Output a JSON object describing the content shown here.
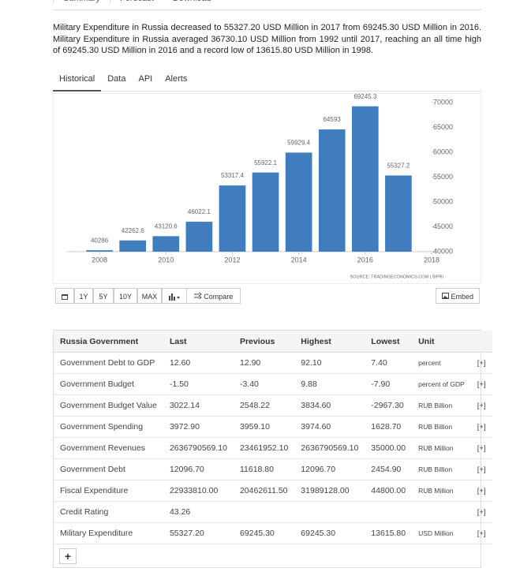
{
  "top_tabs": [
    "Summary",
    "Forecast",
    "Download"
  ],
  "description": "Military Expenditure in Russia decreased to 55327.20 USD Million in 2017 from 69245.30 USD Million in 2016. Military Expenditure in Russia averaged 36730.10 USD Million from 1992 until 2017, reaching an all time high of 69245.30 USD Million in 2016 and a record low of 13615.80 USD Million in 1998.",
  "chart_tabs": [
    "Historical",
    "Data",
    "API",
    "Alerts"
  ],
  "chart_data": {
    "type": "bar",
    "x": [
      2008,
      2009,
      2010,
      2011,
      2012,
      2013,
      2014,
      2015,
      2016,
      2017
    ],
    "values": [
      40286,
      42262.6,
      43120.6,
      46022.1,
      53317.4,
      55922.1,
      59929.4,
      64593,
      69245.3,
      55327.2
    ],
    "color": "#3f7dbf",
    "xlim": [
      2007,
      2018
    ],
    "xticks": [
      2008,
      2010,
      2012,
      2014,
      2016,
      2018
    ],
    "ylim": [
      40000,
      70000
    ],
    "yticks": [
      40000,
      45000,
      50000,
      55000,
      60000,
      65000,
      70000
    ],
    "source": "SOURCE: TRADINGECONOMICS.COM  |  SIPRI",
    "grid": false
  },
  "range_buttons": [
    "1Y",
    "5Y",
    "10Y",
    "MAX"
  ],
  "compare": "Compare",
  "embed": "Embed",
  "table": {
    "headers": [
      "Russia Government",
      "Last",
      "Previous",
      "Highest",
      "Lowest",
      "Unit"
    ],
    "rows": [
      [
        "Government Debt to GDP",
        "12.60",
        "12.90",
        "92.10",
        "7.40",
        "percent",
        "[+]"
      ],
      [
        "Government Budget",
        "-1.50",
        "-3.40",
        "9.88",
        "-7.90",
        "percent of GDP",
        "[+]"
      ],
      [
        "Government Budget Value",
        "3022.14",
        "2548.22",
        "3834.60",
        "-2967.30",
        "RUB Billion",
        "[+]"
      ],
      [
        "Government Spending",
        "3972.90",
        "3959.10",
        "3974.60",
        "1628.70",
        "RUB Billion",
        "[+]"
      ],
      [
        "Government Revenues",
        "2636790569.10",
        "23461952.10",
        "2636790569.10",
        "35000.00",
        "RUB Million",
        "[+]"
      ],
      [
        "Government Debt",
        "12096.70",
        "11618.80",
        "12096.70",
        "2454.90",
        "RUB Billion",
        "[+]"
      ],
      [
        "Fiscal Expenditure",
        "22933810.00",
        "20462611.50",
        "31989128.00",
        "44800.00",
        "RUB Million",
        "[+]"
      ],
      [
        "Credit Rating",
        "43.26",
        null,
        null,
        null,
        null,
        "[+]"
      ],
      [
        "Military Expenditure",
        "55327.20",
        "69245.30",
        "69245.30",
        "13615.80",
        "USD Million",
        "[+]"
      ]
    ],
    "add": "+"
  }
}
